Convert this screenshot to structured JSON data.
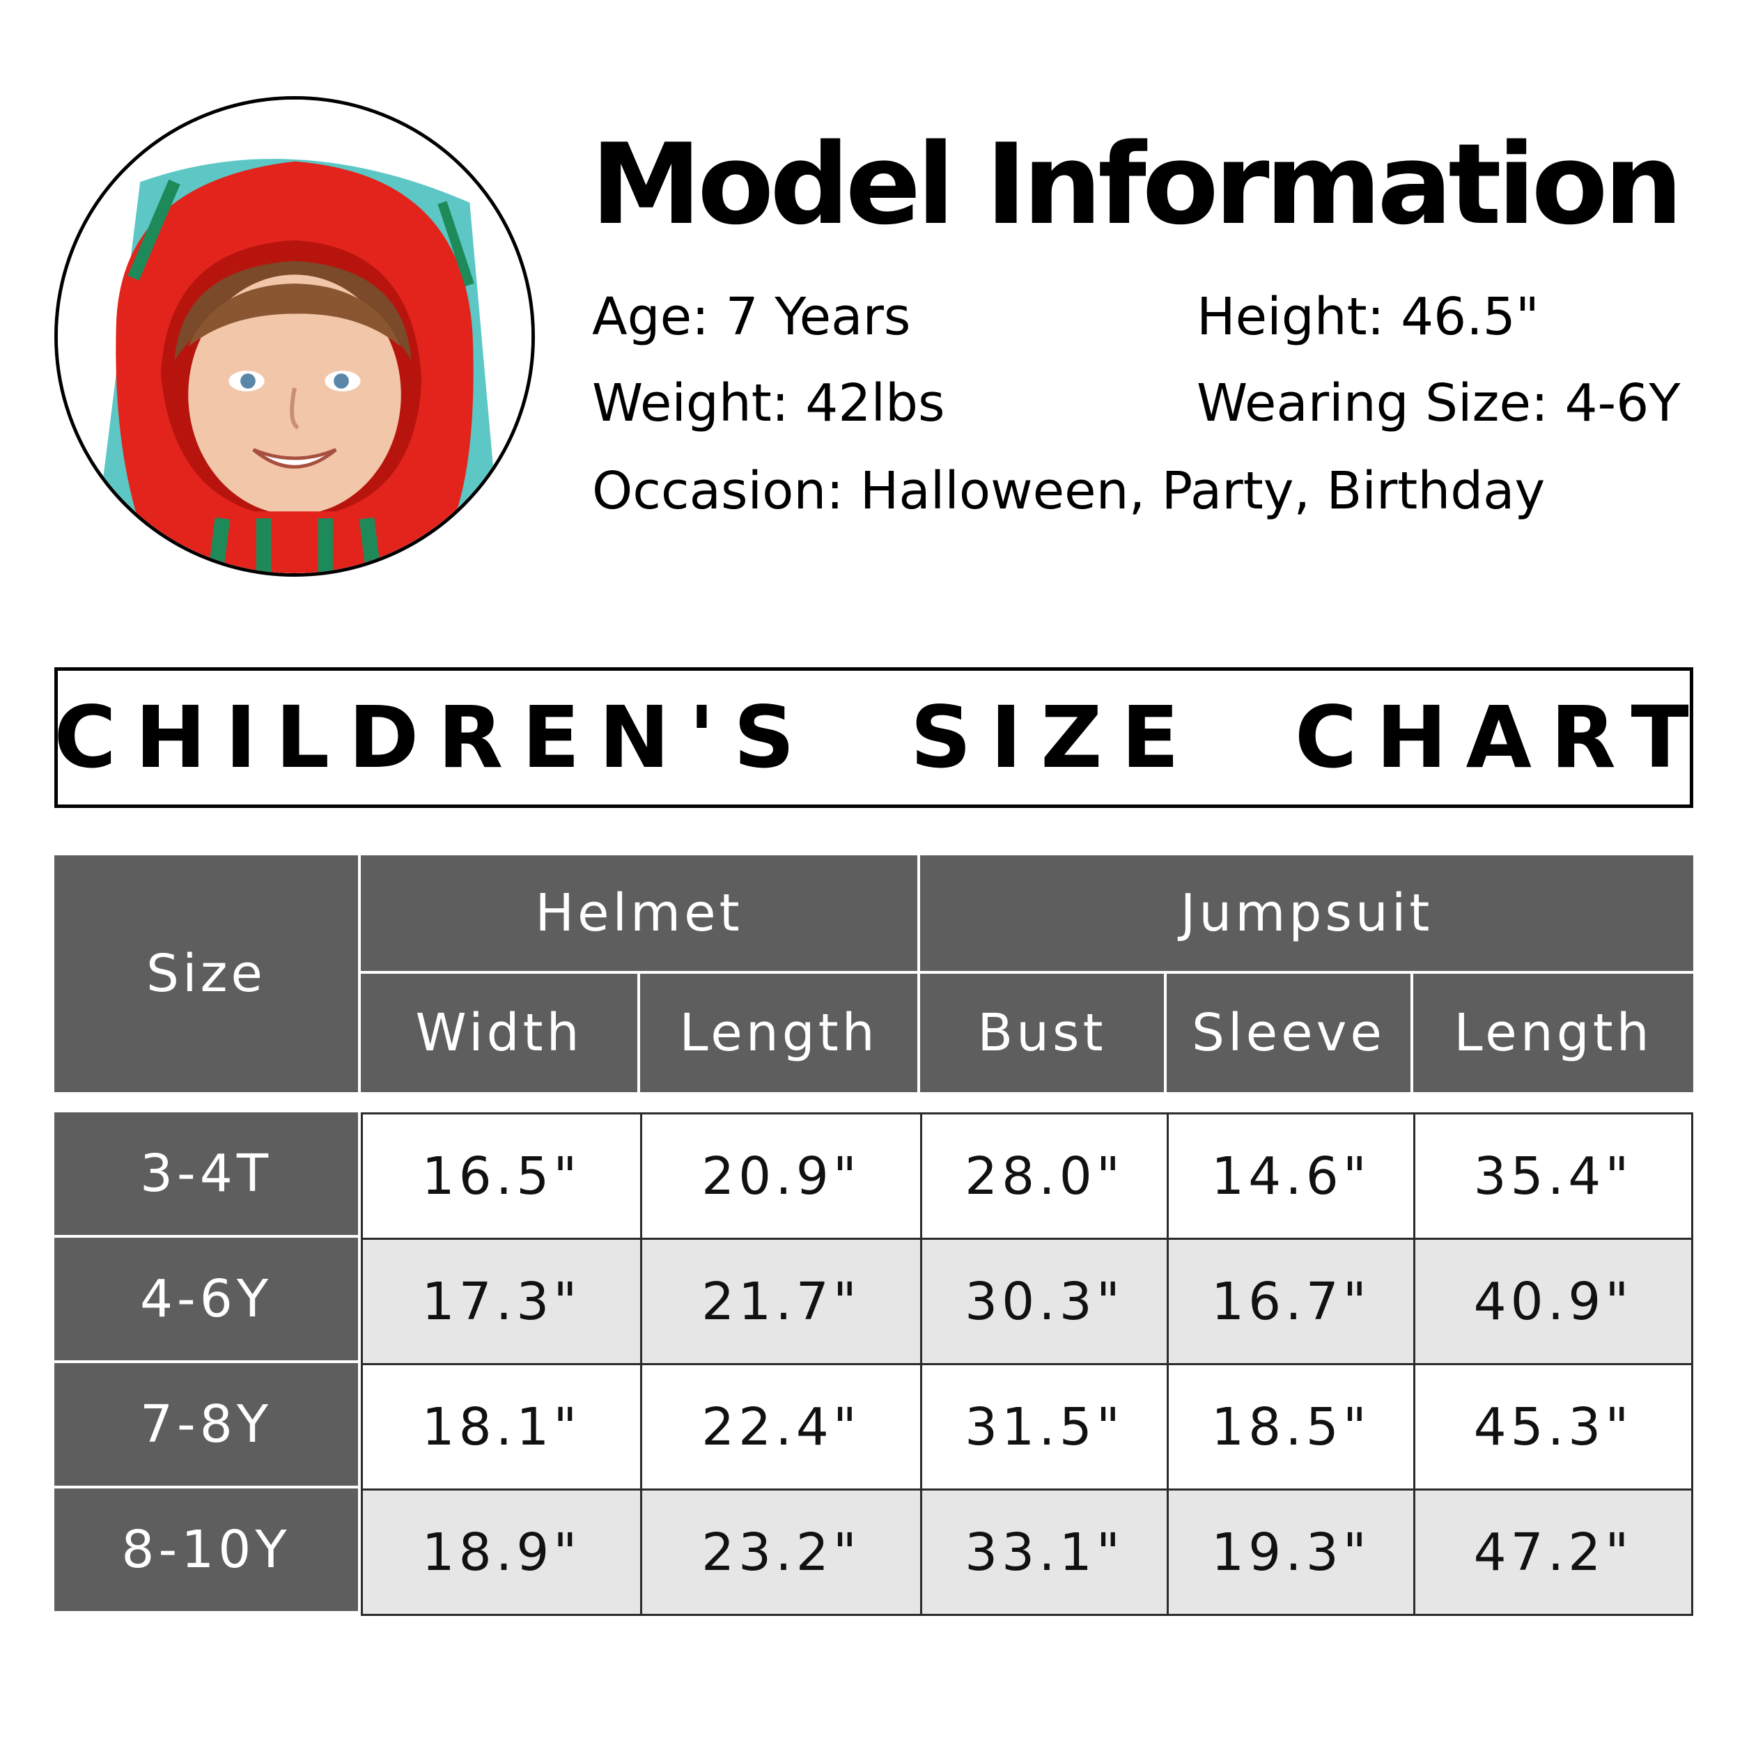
{
  "model_info": {
    "title": "Model Information",
    "age": {
      "label": "Age:",
      "value": "7 Years"
    },
    "height": {
      "label": "Height:",
      "value": "46.5\""
    },
    "weight": {
      "label": "Weight:",
      "value": "42lbs"
    },
    "wearing_size": {
      "label": "Wearing Size:",
      "value": "4-6Y"
    },
    "occasion": {
      "label": "Occasion:",
      "value": "Halloween, Party, Birthday"
    }
  },
  "size_chart": {
    "title": "CHILDREN'S  SIZE  CHART",
    "header": {
      "size": "Size",
      "helmet": "Helmet",
      "jumpsuit": "Jumpsuit",
      "columns": [
        "Width",
        "Length",
        "Bust",
        "Sleeve",
        "Length"
      ]
    },
    "rows": [
      {
        "size": "3-4T",
        "values": [
          "16.5\"",
          "20.9\"",
          "28.0\"",
          "14.6\"",
          "35.4\""
        ]
      },
      {
        "size": "4-6Y",
        "values": [
          "17.3\"",
          "21.7\"",
          "30.3\"",
          "16.7\"",
          "40.9\""
        ]
      },
      {
        "size": "7-8Y",
        "values": [
          "18.1\"",
          "22.4\"",
          "31.5\"",
          "18.5\"",
          "45.3\""
        ]
      },
      {
        "size": "8-10Y",
        "values": [
          "18.9\"",
          "23.2\"",
          "33.1\"",
          "19.3\"",
          "47.2\""
        ]
      }
    ]
  },
  "colors": {
    "header_bg": "#5f5e5e",
    "alt_row_bg": "#e6e6e6",
    "hood_red": "#e2241d",
    "suit_teal": "#5cc7c4",
    "stripe_green": "#1e8a5a"
  }
}
